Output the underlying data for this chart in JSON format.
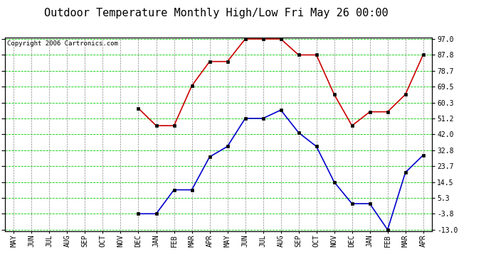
{
  "title": "Outdoor Temperature Monthly High/Low Fri May 26 00:00",
  "copyright": "Copyright 2006 Cartronics.com",
  "x_labels": [
    "MAY",
    "JUN",
    "JUL",
    "AUG",
    "SEP",
    "OCT",
    "NOV",
    "DEC",
    "JAN",
    "FEB",
    "MAR",
    "APR",
    "MAY",
    "JUN",
    "JUL",
    "AUG",
    "SEP",
    "OCT",
    "NOV",
    "DEC",
    "JAN",
    "FEB",
    "MAR",
    "APR"
  ],
  "high_values": [
    null,
    null,
    null,
    null,
    null,
    null,
    null,
    57.0,
    47.0,
    47.0,
    70.0,
    84.0,
    84.0,
    97.0,
    97.0,
    97.0,
    87.8,
    87.8,
    65.0,
    47.0,
    55.0,
    55.0,
    65.0,
    88.0
  ],
  "low_values": [
    null,
    null,
    null,
    null,
    null,
    null,
    null,
    -3.8,
    -3.8,
    10.0,
    10.0,
    29.0,
    35.0,
    51.2,
    51.2,
    56.0,
    43.0,
    35.0,
    14.5,
    2.0,
    2.0,
    -13.0,
    20.0,
    30.0
  ],
  "yticks": [
    97.0,
    87.8,
    78.7,
    69.5,
    60.3,
    51.2,
    42.0,
    32.8,
    23.7,
    14.5,
    5.3,
    -3.8,
    -13.0
  ],
  "ymin": -13.0,
  "ymax": 97.0,
  "bg_color": "#ffffff",
  "plot_bg_color": "#ffffff",
  "grid_h_color": "#00cc00",
  "grid_v_color": "#888888",
  "high_color": "#cc0000",
  "low_color": "#0000cc",
  "title_fontsize": 11,
  "copyright_fontsize": 6.5,
  "xlabel_fontsize": 7,
  "ylabel_fontsize": 7
}
